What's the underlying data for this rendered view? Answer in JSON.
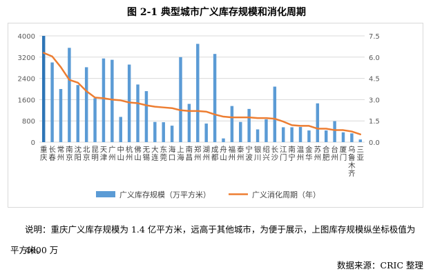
{
  "title": "图 2-1   典型城市广义库存规模和消化周期",
  "note_line1": "说明：重庆广义库存规模为 1.4 亿平方米，远高于其他城市，为便于展示，上图库存规模纵坐标极值为 4000 万",
  "note_line2": "平方米。",
  "source": "数据来源：CRIC 整理",
  "colors": {
    "bar": "#5b9bd5",
    "bar_highlight": "#2e75b6",
    "line": "#ed7d31",
    "grid": "#d9d9d9",
    "axis_text": "#595959"
  },
  "chart_data": {
    "type": "bar",
    "categories": [
      "重庆",
      "长春",
      "常州",
      "南京",
      "沈阳",
      "北京",
      "昆明",
      "天津",
      "广州",
      "中山",
      "杭州",
      "佛山",
      "无锡",
      "大连",
      "东莞",
      "海口",
      "上海",
      "南昌",
      "郑州",
      "湖州",
      "成都",
      "舟山",
      "福州",
      "泰州",
      "宁波",
      "银川",
      "绍兴",
      "长沙",
      "江门",
      "南宁",
      "温州",
      "金华",
      "苏州",
      "合肥",
      "台州",
      "厦门",
      "乌鲁木齐",
      "三亚"
    ],
    "series": [
      {
        "name": "广义库存规模（万平方米）",
        "type": "bar",
        "axis": "left",
        "values": [
          4000,
          3000,
          2000,
          3550,
          2150,
          2820,
          1650,
          3150,
          3100,
          950,
          2920,
          2170,
          1920,
          760,
          750,
          620,
          3200,
          1440,
          3700,
          700,
          3320,
          140,
          1360,
          760,
          1250,
          480,
          860,
          2090,
          560,
          560,
          570,
          440,
          1460,
          440,
          790,
          370,
          330,
          100
        ]
      },
      {
        "name": "广义消化周期（年）",
        "type": "line",
        "axis": "right",
        "values": [
          6.3,
          6.05,
          5.3,
          4.4,
          4.2,
          3.6,
          3.15,
          3.1,
          3.0,
          2.95,
          2.8,
          2.75,
          2.6,
          2.5,
          2.45,
          2.4,
          2.25,
          2.2,
          2.2,
          2.15,
          1.95,
          1.8,
          1.75,
          1.75,
          1.75,
          1.7,
          1.7,
          1.65,
          1.45,
          1.2,
          1.15,
          1.15,
          0.95,
          0.95,
          0.85,
          0.85,
          0.75,
          0.55
        ]
      }
    ],
    "y_left": {
      "min": 0,
      "max": 4000,
      "ticks": [
        "0",
        "800",
        "1600",
        "2400",
        "3200",
        "4000"
      ]
    },
    "y_right": {
      "min": 0,
      "max": 7.5,
      "ticks": [
        "0.0",
        "1.5",
        "3.0",
        "4.5",
        "6.0",
        "7.5"
      ]
    },
    "grid": true,
    "legend_position": "bottom"
  }
}
